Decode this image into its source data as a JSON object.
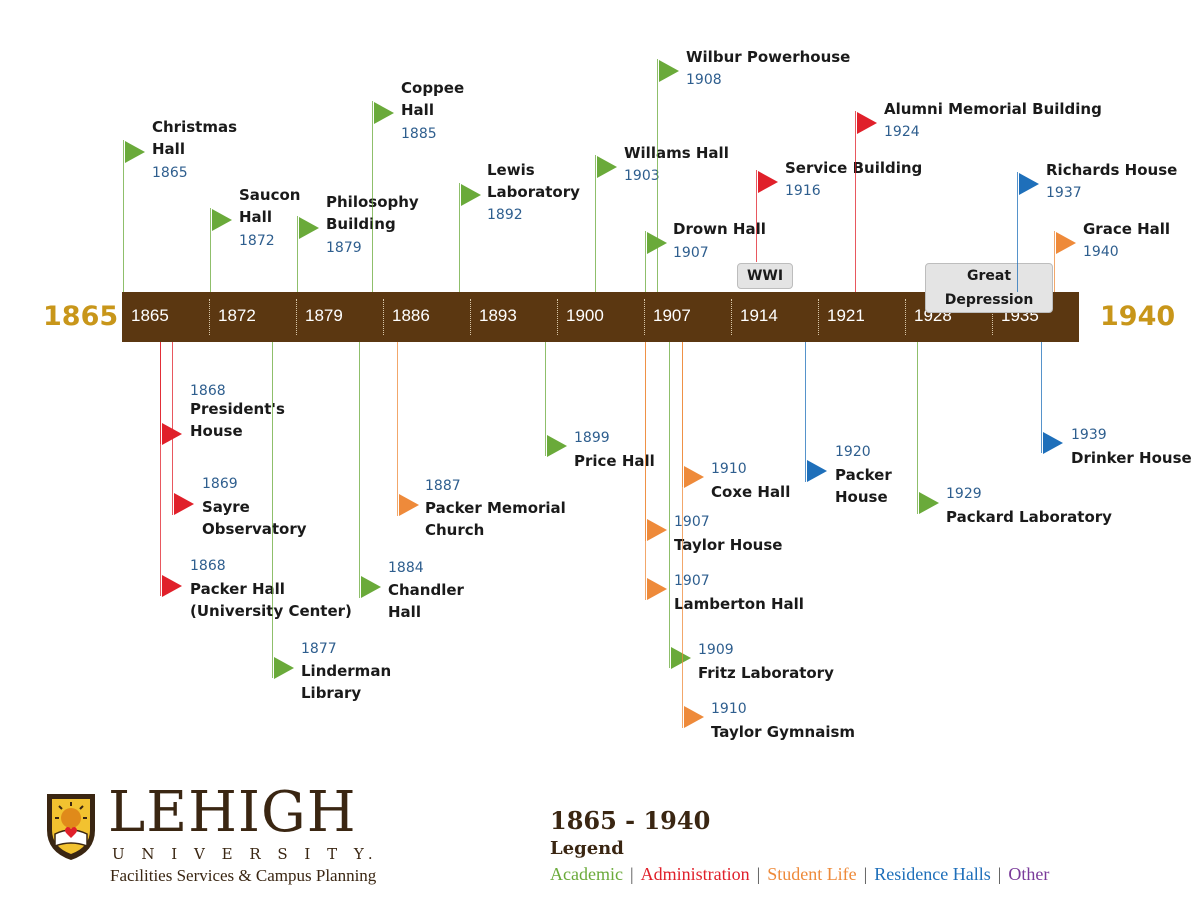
{
  "timeline": {
    "start_label": "1865",
    "end_label": "1940",
    "bar_color": "#5b3711",
    "axis_ticks": [
      "1865",
      "1872",
      "1879",
      "1886",
      "1893",
      "1900",
      "1907",
      "1914",
      "1921",
      "1928",
      "1935"
    ]
  },
  "eras": [
    {
      "label": "WWI"
    },
    {
      "label": "Great Depression"
    }
  ],
  "events": [
    {
      "label": "Christmas\nHall",
      "year": "1865",
      "category": "academic"
    },
    {
      "label": "Saucon\nHall",
      "year": "1872",
      "category": "academic"
    },
    {
      "label": "Philosophy\nBuilding",
      "year": "1879",
      "category": "academic"
    },
    {
      "label": "Coppee\nHall",
      "year": "1885",
      "category": "academic"
    },
    {
      "label": "Lewis\nLaboratory",
      "year": "1892",
      "category": "academic"
    },
    {
      "label": "Willams Hall",
      "year": "1903",
      "category": "academic"
    },
    {
      "label": "Wilbur Powerhouse",
      "year": "1908",
      "category": "academic"
    },
    {
      "label": "Drown Hall",
      "year": "1907",
      "category": "academic"
    },
    {
      "label": "Service Building",
      "year": "1916",
      "category": "administration"
    },
    {
      "label": "Alumni Memorial Building",
      "year": "1924",
      "category": "administration"
    },
    {
      "label": "Richards House",
      "year": "1937",
      "category": "residence"
    },
    {
      "label": "Grace Hall",
      "year": "1940",
      "category": "student_life"
    },
    {
      "label": "President's\nHouse",
      "year": "1868",
      "category": "administration"
    },
    {
      "label": "Sayre\nObservatory",
      "year": "1869",
      "category": "administration"
    },
    {
      "label": "Packer Hall\n(University Center)",
      "year": "1868",
      "category": "administration"
    },
    {
      "label": "Linderman\nLibrary",
      "year": "1877",
      "category": "academic"
    },
    {
      "label": "Chandler\nHall",
      "year": "1884",
      "category": "academic"
    },
    {
      "label": "Packer Memorial\nChurch",
      "year": "1887",
      "category": "student_life"
    },
    {
      "label": "Price Hall",
      "year": "1899",
      "category": "academic"
    },
    {
      "label": "Coxe Hall",
      "year": "1910",
      "category": "student_life"
    },
    {
      "label": "Taylor House",
      "year": "1907",
      "category": "student_life"
    },
    {
      "label": "Lamberton Hall",
      "year": "1907",
      "category": "student_life"
    },
    {
      "label": "Fritz Laboratory",
      "year": "1909",
      "category": "academic"
    },
    {
      "label": "Taylor Gymnaism",
      "year": "1910",
      "category": "student_life"
    },
    {
      "label": "Packer\nHouse",
      "year": "1920",
      "category": "residence"
    },
    {
      "label": "Packard Laboratory",
      "year": "1929",
      "category": "academic"
    },
    {
      "label": "Drinker House",
      "year": "1939",
      "category": "residence"
    }
  ],
  "colors": {
    "academic": "#6aaa3a",
    "administration": "#e0202a",
    "student_life": "#ee8a3a",
    "residence": "#1e6fba",
    "other": "#7a3a9a"
  },
  "logo": {
    "name": "LEHIGH",
    "subtitle": "U N I V E R S I T Y.",
    "department": "Facilities Services & Campus Planning",
    "icon": "lehigh-shield-icon"
  },
  "legend": {
    "range": "1865 - 1940",
    "title": "Legend",
    "items": [
      {
        "label": "Academic",
        "color": "#6aaa3a"
      },
      {
        "label": "Administration",
        "color": "#e0202a"
      },
      {
        "label": "Student Life",
        "color": "#ee8a3a"
      },
      {
        "label": "Residence Halls",
        "color": "#1e6fba"
      },
      {
        "label": "Other",
        "color": "#7a3a9a"
      }
    ]
  }
}
